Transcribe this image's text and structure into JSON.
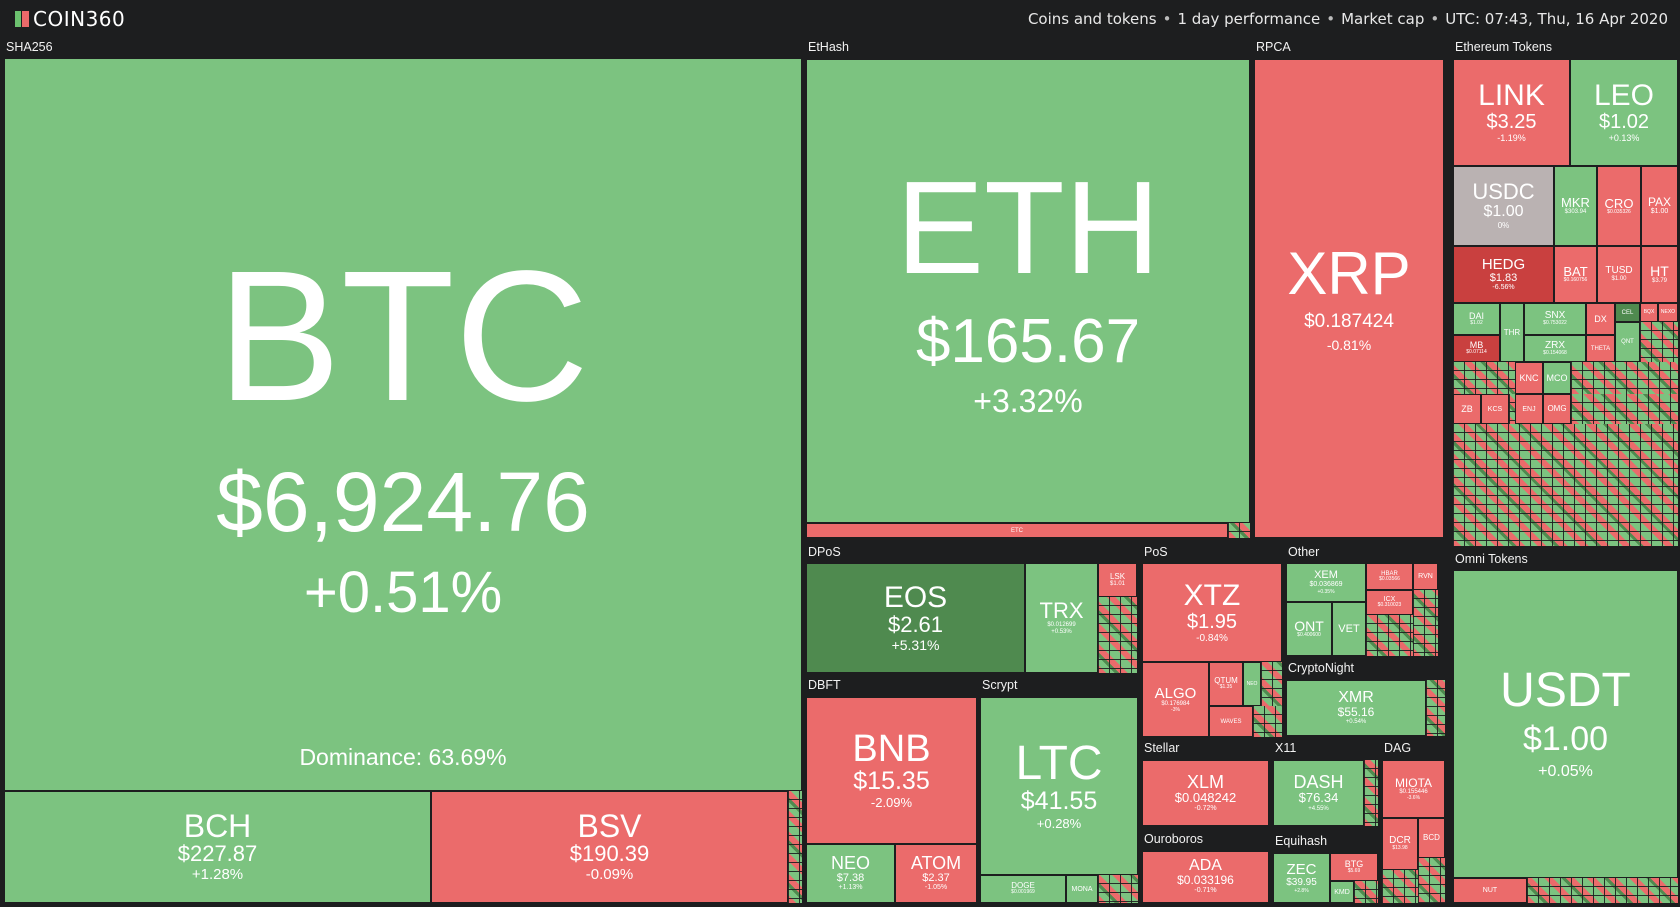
{
  "header": {
    "brand": "COIN360",
    "filters": [
      "Coins and tokens",
      "1 day performance",
      "Market cap",
      "UTC: 07:43, Thu, 16 Apr 2020"
    ]
  },
  "groups": {
    "sha256": "SHA256",
    "ethash": "EtHash",
    "rpca": "RPCA",
    "eth_tokens": "Ethereum Tokens",
    "dpos": "DPoS",
    "pos": "PoS",
    "other": "Other",
    "omni": "Omni Tokens",
    "dbft": "DBFT",
    "scrypt": "Scrypt",
    "cryptonight": "CryptoNight",
    "stellar": "Stellar",
    "x11": "X11",
    "dag": "DAG",
    "ouroboros": "Ouroboros",
    "equihash": "Equihash"
  },
  "btc": {
    "sym": "BTC",
    "price": "$6,924.76",
    "chg": "+0.51%",
    "dominance": "Dominance: 63.69%"
  },
  "coins": {
    "bch": {
      "sym": "BCH",
      "price": "$227.87",
      "chg": "+1.28%"
    },
    "bsv": {
      "sym": "BSV",
      "price": "$190.39",
      "chg": "-0.09%"
    },
    "eth": {
      "sym": "ETH",
      "price": "$165.67",
      "chg": "+3.32%"
    },
    "etc": {
      "sym": "ETC"
    },
    "xrp": {
      "sym": "XRP",
      "price": "$0.187424",
      "chg": "-0.81%"
    },
    "link": {
      "sym": "LINK",
      "price": "$3.25",
      "chg": "-1.19%"
    },
    "leo": {
      "sym": "LEO",
      "price": "$1.02",
      "chg": "+0.13%"
    },
    "usdc": {
      "sym": "USDC",
      "price": "$1.00",
      "chg": "0%"
    },
    "mkr": {
      "sym": "MKR",
      "price": "$303.94"
    },
    "cro": {
      "sym": "CRO",
      "price": "$0.035326"
    },
    "pax": {
      "sym": "PAX",
      "price": "$1.00"
    },
    "hedg": {
      "sym": "HEDG",
      "price": "$1.83",
      "chg": "-6.56%"
    },
    "bat": {
      "sym": "BAT",
      "price": "$0.160756"
    },
    "tusd": {
      "sym": "TUSD",
      "price": "$1.00"
    },
    "ht": {
      "sym": "HT",
      "price": "$3.79"
    },
    "dai": {
      "sym": "DAI",
      "price": "$1.02"
    },
    "thr": {
      "sym": "THR"
    },
    "snx": {
      "sym": "SNX",
      "price": "$0.753022"
    },
    "dx": {
      "sym": "DX"
    },
    "cel": {
      "sym": "CEL"
    },
    "bqx": {
      "sym": "BQX"
    },
    "nexo": {
      "sym": "NEXO"
    },
    "mb": {
      "sym": "MB",
      "price": "$0.07114"
    },
    "zrx": {
      "sym": "ZRX",
      "price": "$0.154068"
    },
    "theta": {
      "sym": "THETA"
    },
    "qnt": {
      "sym": "QNT"
    },
    "knc": {
      "sym": "KNC"
    },
    "mco": {
      "sym": "MCO"
    },
    "zb": {
      "sym": "ZB"
    },
    "kcs": {
      "sym": "KCS"
    },
    "enj": {
      "sym": "ENJ"
    },
    "omg": {
      "sym": "OMG"
    },
    "eos": {
      "sym": "EOS",
      "price": "$2.61",
      "chg": "+5.31%"
    },
    "trx": {
      "sym": "TRX",
      "price": "$0.012699",
      "chg": "+0.53%"
    },
    "lsk": {
      "sym": "LSK",
      "price": "$1.01"
    },
    "xtz": {
      "sym": "XTZ",
      "price": "$1.95",
      "chg": "-0.84%"
    },
    "algo": {
      "sym": "ALGO",
      "price": "$0.176984",
      "chg": "-3%"
    },
    "qtum": {
      "sym": "QTUM",
      "price": "$1.35"
    },
    "neo_small": {
      "sym": "NEO"
    },
    "waves": {
      "sym": "WAVES"
    },
    "xem": {
      "sym": "XEM",
      "price": "$0.036869",
      "chg": "+0.35%"
    },
    "hbar": {
      "sym": "HBAR",
      "price": "$0.03566"
    },
    "rvn": {
      "sym": "RVN"
    },
    "icx": {
      "sym": "ICX",
      "price": "$0.310023"
    },
    "ont": {
      "sym": "ONT",
      "price": "$0.400600"
    },
    "vet": {
      "sym": "VET"
    },
    "usdt": {
      "sym": "USDT",
      "price": "$1.00",
      "chg": "+0.05%"
    },
    "bnb": {
      "sym": "BNB",
      "price": "$15.35",
      "chg": "-2.09%"
    },
    "neo": {
      "sym": "NEO",
      "price": "$7.38",
      "chg": "+1.13%"
    },
    "atom": {
      "sym": "ATOM",
      "price": "$2.37",
      "chg": "-1.05%"
    },
    "ltc": {
      "sym": "LTC",
      "price": "$41.55",
      "chg": "+0.28%"
    },
    "doge": {
      "sym": "DOGE",
      "price": "$0.001969"
    },
    "mona": {
      "sym": "MONA"
    },
    "xmr": {
      "sym": "XMR",
      "price": "$55.16",
      "chg": "+0.54%"
    },
    "xlm": {
      "sym": "XLM",
      "price": "$0.048242",
      "chg": "-0.72%"
    },
    "dash": {
      "sym": "DASH",
      "price": "$76.34",
      "chg": "+4.55%"
    },
    "miota": {
      "sym": "MIOTA",
      "price": "$0.155446",
      "chg": "-3.6%"
    },
    "dcr": {
      "sym": "DCR",
      "price": "$13.98"
    },
    "bcd": {
      "sym": "BCD"
    },
    "ada": {
      "sym": "ADA",
      "price": "$0.033196",
      "chg": "-0.71%"
    },
    "zec": {
      "sym": "ZEC",
      "price": "$39.95",
      "chg": "+2.8%"
    },
    "btg": {
      "sym": "BTG",
      "price": "$5.69"
    },
    "kmd": {
      "sym": "KMD"
    },
    "nut": {
      "sym": "NUT"
    }
  }
}
